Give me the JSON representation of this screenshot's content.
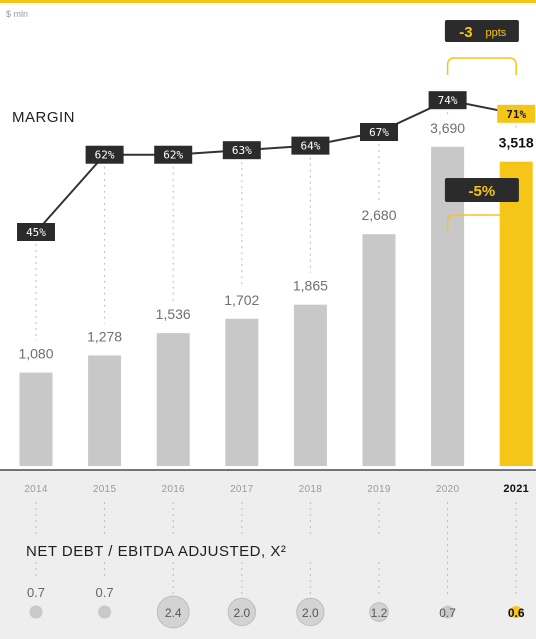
{
  "chart_data": {
    "type": "bar",
    "unit_label": "$ mln",
    "categories": [
      "2014",
      "2015",
      "2016",
      "2017",
      "2018",
      "2019",
      "2020",
      "2021"
    ],
    "highlight_index": 7,
    "series": [
      {
        "values": [
          1080,
          1278,
          1536,
          1702,
          1865,
          2680,
          3690,
          3518
        ]
      }
    ],
    "value_labels": [
      "1,080",
      "1,278",
      "1,536",
      "1,702",
      "1,865",
      "2,680",
      "3,690",
      "3,518"
    ],
    "ylim": [
      0,
      4000
    ],
    "margin": {
      "title": "MARGIN",
      "values": [
        45,
        62,
        62,
        63,
        64,
        67,
        74,
        71
      ],
      "labels": [
        "45%",
        "62%",
        "62%",
        "63%",
        "64%",
        "67%",
        "74%",
        "71%"
      ]
    },
    "net_debt": {
      "title": "NET DEBT / EBITDA ADJUSTED, X²",
      "values": [
        0.7,
        0.7,
        2.4,
        2.0,
        2.0,
        1.2,
        0.7,
        0.6
      ],
      "labels": [
        "0.7",
        "0.7",
        "2.4",
        "2.0",
        "2.0",
        "1.2",
        "0.7",
        "0.6"
      ]
    },
    "callouts": {
      "margin_change": {
        "value": "-3",
        "unit": "ppts"
      },
      "revenue_change": {
        "value": "-5%"
      }
    },
    "colors": {
      "bar": "#c8c8c8",
      "highlight": "#f5c518",
      "line": "#333333",
      "label_box": "#2b2b2b",
      "band": "#eeeeee"
    }
  }
}
